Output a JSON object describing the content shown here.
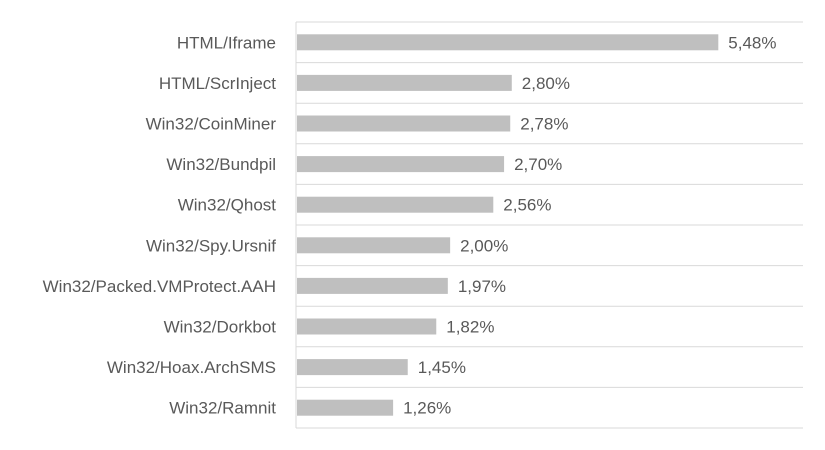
{
  "chart_data": {
    "type": "bar",
    "orientation": "horizontal",
    "categories": [
      "HTML/Iframe",
      "HTML/ScrInject",
      "Win32/CoinMiner",
      "Win32/Bundpil",
      "Win32/Qhost",
      "Win32/Spy.Ursnif",
      "Win32/Packed.VMProtect.AAH",
      "Win32/Dorkbot",
      "Win32/Hoax.ArchSMS",
      "Win32/Ramnit"
    ],
    "values": [
      5.48,
      2.8,
      2.78,
      2.7,
      2.56,
      2.0,
      1.97,
      1.82,
      1.45,
      1.26
    ],
    "value_labels": [
      "5,48%",
      "2,80%",
      "2,78%",
      "2,70%",
      "2,56%",
      "2,00%",
      "1,97%",
      "1,82%",
      "1,45%",
      "1,26%"
    ],
    "xlim": [
      0,
      6
    ],
    "grid": true,
    "bar_color": "#bfbfbf",
    "grid_color": "#d9d9d9",
    "text_color": "#595959"
  }
}
